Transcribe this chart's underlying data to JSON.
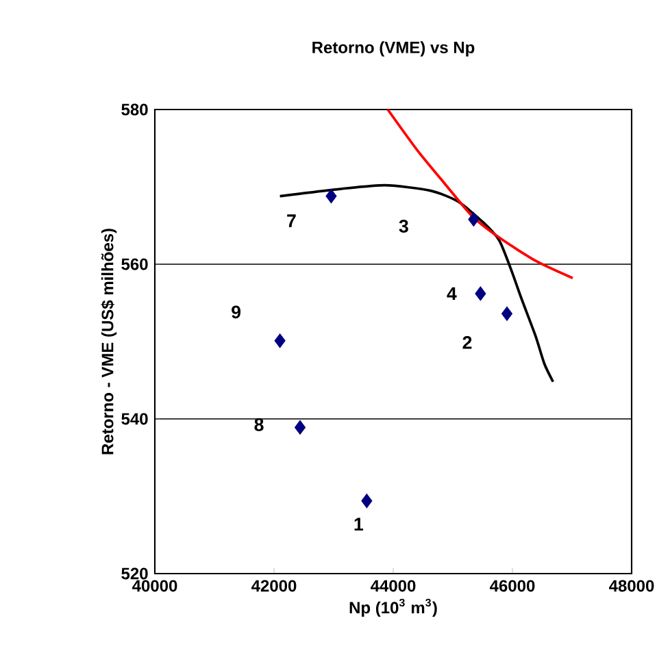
{
  "chart_data": {
    "type": "scatter",
    "title": "Retorno (VME) vs Np",
    "xlabel": "Np (10$^{3}$ m$^{3}$)",
    "ylabel": "Retorno - VME (US$ milhões)",
    "xlim": [
      40000,
      48000
    ],
    "xticks": [
      40000,
      42000,
      44000,
      46000,
      48000
    ],
    "ylim": [
      520,
      580
    ],
    "yticks": [
      520,
      540,
      560,
      580
    ],
    "grid": "y",
    "marker": "diamond",
    "series": [
      {
        "color": "#000080",
        "x": [
          43556,
          45908,
          45349,
          45464,
          42959,
          42437,
          42099
        ],
        "values": [
          529.4,
          553.6,
          565.8,
          556.2,
          568.8,
          538.9,
          550.1
        ]
      },
      {
        "type": "line",
        "color": "#000000",
        "marker": "none",
        "x": [
          42099,
          42958,
          43862,
          44628,
          45088,
          45510,
          45777,
          45968,
          46159,
          46389,
          46537,
          46682
        ],
        "values": [
          568.8,
          569.6,
          570.2,
          569.5,
          568.1,
          565.4,
          563.1,
          559.5,
          555.4,
          550.7,
          547.1,
          544.8
        ]
      },
      {
        "type": "line",
        "color": "#ff0000",
        "marker": "none",
        "x": [
          43908,
          44407,
          44866,
          45326,
          45786,
          46398,
          47011
        ],
        "values": [
          580,
          574.7,
          570.4,
          566.2,
          563.4,
          560.4,
          558.2
        ]
      }
    ],
    "annotations": [
      "1",
      "2",
      "3",
      "4",
      "7",
      "8",
      "9"
    ]
  }
}
